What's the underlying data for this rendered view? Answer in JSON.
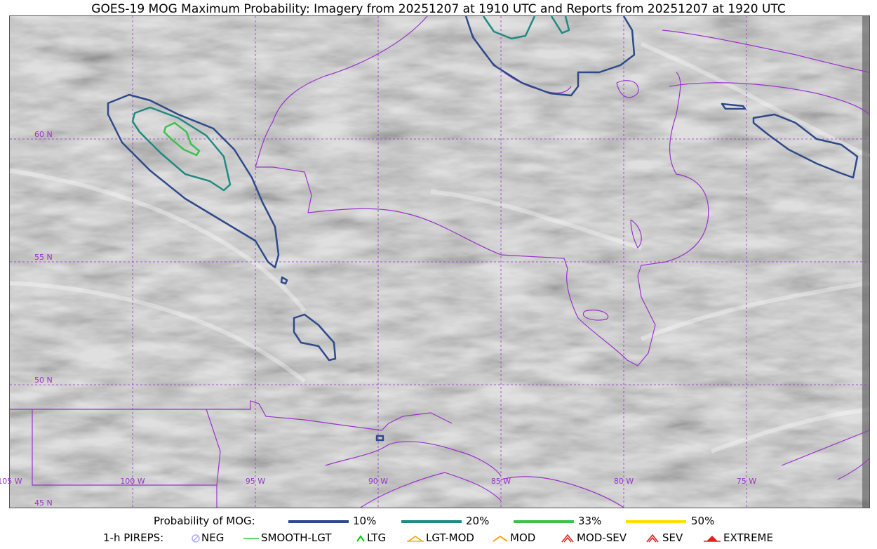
{
  "title": "GOES-19 MOG Maximum Probability: Imagery from 20251207 at 1910 UTC and Reports from 20251207 at 1920 UTC",
  "map": {
    "lat_labels": [
      "60 N",
      "55 N",
      "50 N",
      "45 N"
    ],
    "lon_labels": [
      "105 W",
      "100 W",
      "95 W",
      "90 W",
      "85 W",
      "80 W",
      "75 W"
    ],
    "colors": {
      "background_gray": "#b8b8b8",
      "boundaries": "#9933cc",
      "grid": "#9933cc",
      "p10": "#2e4a8a",
      "p20": "#1f8a80",
      "p33": "#3ec04f",
      "p50": "#ffe000"
    }
  },
  "legend": {
    "probability_label": "Probability of MOG:",
    "probability_items": [
      {
        "label": "10%",
        "color": "#2e4a8a"
      },
      {
        "label": "20%",
        "color": "#1f8a80"
      },
      {
        "label": "33%",
        "color": "#3ec04f"
      },
      {
        "label": "50%",
        "color": "#ffe000"
      }
    ],
    "pireps_label": "1-h PIREPS:",
    "pirep_items": [
      {
        "label": "NEG",
        "icon": "neg-circle-icon",
        "color": "#b0b0ff"
      },
      {
        "label": "SMOOTH-LGT",
        "icon": "smooth-lgt-line-icon",
        "color": "#33cc33"
      },
      {
        "label": "LTG",
        "icon": "ltg-caret-icon",
        "color": "#00cc00"
      },
      {
        "label": "LGT-MOD",
        "icon": "lgt-mod-caret-icon",
        "color": "#f0a000"
      },
      {
        "label": "MOD",
        "icon": "mod-caret-icon",
        "color": "#f0a000"
      },
      {
        "label": "MOD-SEV",
        "icon": "mod-sev-caret-icon",
        "color": "#e02020"
      },
      {
        "label": "SEV",
        "icon": "sev-caret-icon",
        "color": "#e02020"
      },
      {
        "label": "EXTREME",
        "icon": "extreme-caret-icon",
        "color": "#e02020"
      }
    ]
  }
}
